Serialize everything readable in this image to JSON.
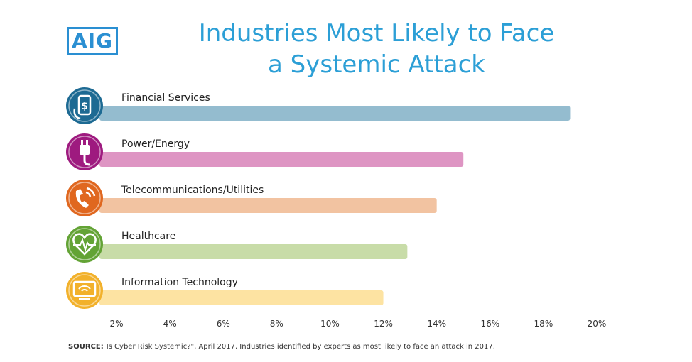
{
  "logo": "AIG",
  "title_lines": [
    "Industries Most Likely to Face",
    "a Systemic Attack"
  ],
  "source_label": "SOURCE:",
  "source_text": "Is Cyber Risk Systemic?\", April 2017, Industries identified by experts as most likely to face an attack in 2017.",
  "colors": {
    "title": "#2c9fd6",
    "logo": "#2a8fd2"
  },
  "chart_data": {
    "type": "bar",
    "orientation": "horizontal",
    "categories": [
      "Financial Services",
      "Power/Energy",
      "Telecommunications/Utilities",
      "Healthcare",
      "Information Technology"
    ],
    "values": [
      19,
      15,
      14,
      12.9,
      12
    ],
    "unit": "%",
    "xlim": [
      1,
      20
    ],
    "x_ticks": [
      "2%",
      "4%",
      "6%",
      "8%",
      "10%",
      "12%",
      "14%",
      "16%",
      "18%",
      "20%"
    ],
    "bar_colors": [
      "#94bccf",
      "#de95c3",
      "#f2c3a1",
      "#c8dca8",
      "#fde3a2"
    ],
    "icon_colors": [
      "#1d6a93",
      "#9e1a7f",
      "#e0671f",
      "#63a335",
      "#f2b12b"
    ],
    "icons": [
      "mobile-payment-icon",
      "power-plug-icon",
      "phone-signal-icon",
      "heart-pulse-icon",
      "wifi-monitor-icon"
    ],
    "grid": false,
    "legend": "none"
  }
}
